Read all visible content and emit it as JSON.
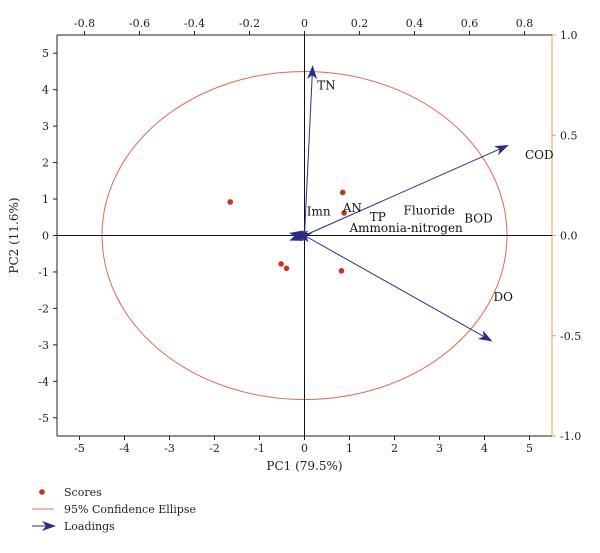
{
  "chart_data": {
    "type": "scatter",
    "xlabel": "PC1 (79.5%)",
    "ylabel": "PC2 (11.6%)",
    "xlim": [
      -5.5,
      5.5
    ],
    "ylim": [
      -5.5,
      5.5
    ],
    "x_ticks": [
      -5,
      -4,
      -3,
      -2,
      -1,
      0,
      1,
      2,
      3,
      4,
      5
    ],
    "y_ticks": [
      -5,
      -4,
      -3,
      -2,
      -1,
      0,
      1,
      2,
      3,
      4,
      5
    ],
    "top_axis": {
      "lim": [
        -0.9,
        0.9
      ],
      "ticks": [
        "-0.8",
        "-0.6",
        "-0.4",
        "-0.2",
        "0",
        "0.2",
        "0.4",
        "0.6",
        "0.8"
      ]
    },
    "right_axis": {
      "lim": [
        -1.0,
        1.0
      ],
      "ticks": [
        "1.0",
        "0.5",
        "0.0",
        "-0.5",
        "-1.0"
      ],
      "color": "#e8a04a"
    },
    "scores": [
      {
        "x": -1.65,
        "y": 0.92
      },
      {
        "x": 0.85,
        "y": 1.18
      },
      {
        "x": 0.88,
        "y": 0.62
      },
      {
        "x": -0.52,
        "y": -0.78
      },
      {
        "x": -0.4,
        "y": -0.9
      },
      {
        "x": 0.82,
        "y": -0.97
      }
    ],
    "loadings": [
      {
        "name": "TN",
        "x": 0.03,
        "y": 0.77
      },
      {
        "name": "COD",
        "x": 0.75,
        "y": 0.41
      },
      {
        "name": "DO",
        "x": 0.69,
        "y": -0.48
      },
      {
        "name": "Imn",
        "x": -0.04,
        "y": 0.0
      },
      {
        "name": "AN",
        "x": -0.02,
        "y": 0.01
      },
      {
        "name": "TP",
        "x": -0.03,
        "y": 0.0
      },
      {
        "name": "Fluoride",
        "x": -0.05,
        "y": 0.01
      },
      {
        "name": "BOD",
        "x": -0.04,
        "y": -0.01
      },
      {
        "name": "Ammonia-nitrogen",
        "x": -0.05,
        "y": -0.02
      }
    ],
    "labels": [
      {
        "text": "TN",
        "x": 0.28,
        "y": 4.0
      },
      {
        "text": "COD",
        "x": 4.9,
        "y": 2.1
      },
      {
        "text": "DO",
        "x": 4.2,
        "y": -1.8
      },
      {
        "text": "Imn",
        "x": 0.05,
        "y": 0.55
      },
      {
        "text": "AN",
        "x": 0.85,
        "y": 0.65
      },
      {
        "text": "TP",
        "x": 1.45,
        "y": 0.4
      },
      {
        "text": "Fluoride",
        "x": 2.2,
        "y": 0.58
      },
      {
        "text": "BOD",
        "x": 3.55,
        "y": 0.35
      },
      {
        "text": "Ammonia-nitrogen",
        "x": 1.0,
        "y": 0.1
      }
    ],
    "ellipse": {
      "cx": 0,
      "cy": 0,
      "rx": 4.5,
      "ry": 4.5,
      "color": "#e06a5a"
    },
    "score_color": "#c8331e",
    "loading_color": "#2b2b8c",
    "legend": {
      "position": "bottom-left",
      "items": [
        {
          "label": "Scores",
          "kind": "dot"
        },
        {
          "label": "95% Confidence Ellipse",
          "kind": "line"
        },
        {
          "label": "Loadings",
          "kind": "arrow"
        }
      ]
    }
  }
}
